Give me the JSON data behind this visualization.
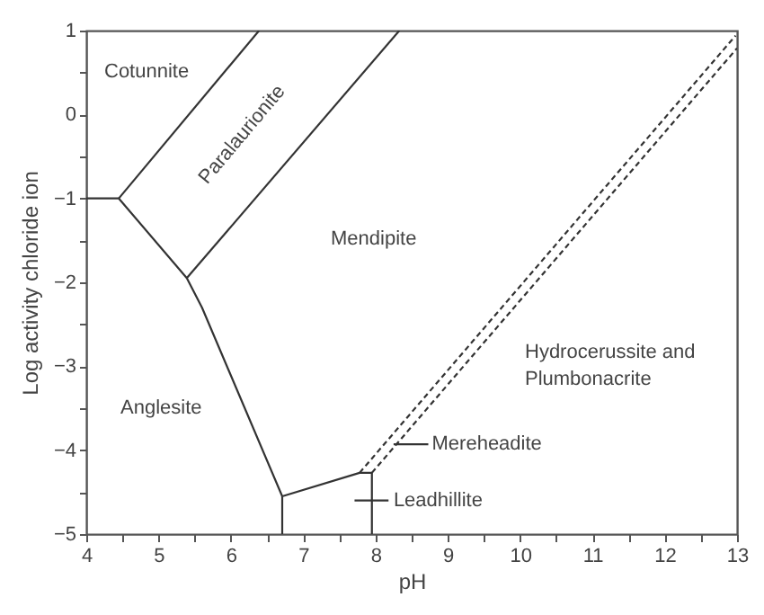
{
  "chart_data": {
    "type": "line",
    "xlabel": "pH",
    "ylabel": "Log activity chloride ion",
    "xlim": [
      4,
      13
    ],
    "ylim": [
      -5,
      1
    ],
    "xticks": [
      4,
      {
        "value": 4.5,
        "label": null
      },
      5,
      {
        "value": 5.5,
        "label": null
      },
      6,
      {
        "value": 6.5,
        "label": null
      },
      7,
      {
        "value": 7.5,
        "label": null
      },
      8,
      {
        "value": 8.5,
        "label": null
      },
      9,
      {
        "value": 9.5,
        "label": null
      },
      10,
      {
        "value": 10.5,
        "label": null
      },
      11,
      {
        "value": 11.5,
        "label": null
      },
      12,
      {
        "value": 12.5,
        "label": null
      },
      13
    ],
    "yticks": [
      -5,
      {
        "value": -4.5,
        "label": null
      },
      -4,
      {
        "value": -3.5,
        "label": null
      },
      -3,
      {
        "value": -2.5,
        "label": null
      },
      -2,
      {
        "value": -1.5,
        "label": null
      },
      -1,
      {
        "value": -0.5,
        "label": null
      },
      0,
      {
        "value": 0.5,
        "label": null
      },
      1
    ],
    "series": [
      {
        "color": "#333333",
        "line_style": "solid",
        "x": [
          4,
          4.45
        ],
        "values": [
          -1,
          -1
        ]
      },
      {
        "color": "#333333",
        "line_style": "solid",
        "x": [
          4.45,
          6.39
        ],
        "values": [
          -1,
          1
        ]
      },
      {
        "color": "#333333",
        "line_style": "solid",
        "x": [
          4.45,
          5.39,
          5.6,
          6.71
        ],
        "values": [
          -1,
          -1.95,
          -2.3,
          -4.55
        ]
      },
      {
        "color": "#333333",
        "line_style": "solid",
        "x": [
          5.39,
          8.33
        ],
        "values": [
          -1.95,
          1
        ]
      },
      {
        "color": "#333333",
        "line_style": "solid",
        "x": [
          6.71,
          6.71,
          7.78,
          7.95,
          7.95
        ],
        "values": [
          -5,
          -4.55,
          -4.27,
          -4.27,
          -5
        ]
      },
      {
        "color": "#333333",
        "line_style": "dashed",
        "x": [
          7.78,
          12.98
        ],
        "values": [
          -4.27,
          0.94
        ]
      },
      {
        "color": "#333333",
        "line_style": "dashed",
        "x": [
          7.95,
          13
        ],
        "values": [
          -4.27,
          0.79
        ]
      },
      {
        "color": "#333333",
        "line_style": "solid",
        "x": [
          8.25,
          8.73
        ],
        "values": [
          -3.93,
          -3.93
        ]
      },
      {
        "color": "#333333",
        "line_style": "solid",
        "x": [
          7.71,
          8.18
        ],
        "values": [
          -4.6,
          -4.6
        ]
      }
    ],
    "annotations": [
      "Cotunnite",
      "Paralaurionite",
      "Mendipite",
      "Anglesite",
      "Hydrocerussite and\nPlumbonacrite",
      {
        "text": "Mereheadite",
        "x": 8.78,
        "y": -3.93
      },
      {
        "text": "Leadhillite",
        "x": 8.25,
        "y": -4.6
      }
    ]
  }
}
